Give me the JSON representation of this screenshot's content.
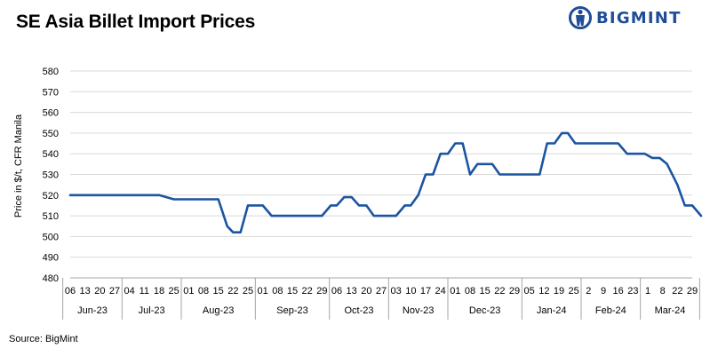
{
  "title": "SE Asia Billet Import Prices",
  "brand": "BIGMINT",
  "source": "Source: BigMint",
  "colors": {
    "line": "#1b54a1",
    "brand": "#1f4e97",
    "grid": "#d9d9d9",
    "axis": "#a6a6a6"
  },
  "chart_data": {
    "type": "line",
    "title": "SE Asia Billet Import Prices",
    "xlabel": "",
    "ylabel": "Price in $/t, CFR Manila",
    "ylim": [
      480,
      580
    ],
    "yticks": [
      480,
      490,
      500,
      510,
      520,
      530,
      540,
      550,
      560,
      570,
      580
    ],
    "grid": true,
    "x": [
      "06",
      "13",
      "20",
      "27",
      "04",
      "11",
      "18",
      "25",
      "01",
      "08",
      "15",
      "22",
      "25",
      "01",
      "08",
      "15",
      "22",
      "29",
      "06",
      "13",
      "20",
      "27",
      "03",
      "10",
      "17",
      "24",
      "01",
      "08",
      "15",
      "22",
      "29",
      "05",
      "12",
      "19",
      "25",
      "2",
      "9",
      "16",
      "23",
      "1",
      "8",
      "22",
      "29"
    ],
    "months": [
      {
        "label": "Jun-23",
        "span": [
          0,
          3
        ]
      },
      {
        "label": "Jul-23",
        "span": [
          4,
          7
        ]
      },
      {
        "label": "Aug-23",
        "span": [
          8,
          12
        ]
      },
      {
        "label": "Sep-23",
        "span": [
          13,
          17
        ]
      },
      {
        "label": "Oct-23",
        "span": [
          18,
          21
        ]
      },
      {
        "label": "Nov-23",
        "span": [
          22,
          25
        ]
      },
      {
        "label": "Dec-23",
        "span": [
          26,
          30
        ]
      },
      {
        "label": "Jan-24",
        "span": [
          31,
          34
        ]
      },
      {
        "label": "Feb-24",
        "span": [
          35,
          38
        ]
      },
      {
        "label": "Mar-24",
        "span": [
          39,
          42
        ]
      }
    ],
    "series": [
      {
        "points": [
          [
            0,
            520
          ],
          [
            1,
            520
          ],
          [
            2,
            520
          ],
          [
            3,
            520
          ],
          [
            4,
            520
          ],
          [
            5,
            520
          ],
          [
            6,
            520
          ],
          [
            7,
            518
          ],
          [
            8,
            518
          ],
          [
            9,
            518
          ],
          [
            10,
            518
          ],
          [
            10.6,
            505
          ],
          [
            11,
            502
          ],
          [
            11.5,
            502
          ],
          [
            12,
            515
          ],
          [
            12.5,
            515
          ],
          [
            13,
            515
          ],
          [
            13.6,
            510
          ],
          [
            14,
            510
          ],
          [
            15,
            510
          ],
          [
            16,
            510
          ],
          [
            17,
            510
          ],
          [
            17.6,
            515
          ],
          [
            18,
            515
          ],
          [
            18.5,
            519
          ],
          [
            19,
            519
          ],
          [
            19.5,
            515
          ],
          [
            20,
            515
          ],
          [
            20.5,
            510
          ],
          [
            21,
            510
          ],
          [
            22,
            510
          ],
          [
            22.6,
            515
          ],
          [
            23,
            515
          ],
          [
            23.5,
            520
          ],
          [
            24,
            530
          ],
          [
            24.5,
            530
          ],
          [
            25,
            540
          ],
          [
            25.5,
            540
          ],
          [
            26,
            545
          ],
          [
            26.5,
            545
          ],
          [
            27,
            530
          ],
          [
            27.5,
            535
          ],
          [
            28,
            535
          ],
          [
            28.5,
            535
          ],
          [
            29,
            530
          ],
          [
            30,
            530
          ],
          [
            31,
            530
          ],
          [
            31.7,
            530
          ],
          [
            32.2,
            545
          ],
          [
            32.7,
            545
          ],
          [
            33.2,
            550
          ],
          [
            33.6,
            550
          ],
          [
            34.1,
            545
          ],
          [
            35,
            545
          ],
          [
            36,
            545
          ],
          [
            37,
            545
          ],
          [
            37.6,
            540
          ],
          [
            38,
            540
          ],
          [
            38.8,
            540
          ],
          [
            39.3,
            538
          ],
          [
            39.8,
            538
          ],
          [
            40.3,
            535
          ],
          [
            41,
            525
          ],
          [
            41.5,
            515
          ],
          [
            42,
            515
          ],
          [
            42.6,
            510
          ]
        ]
      }
    ]
  }
}
